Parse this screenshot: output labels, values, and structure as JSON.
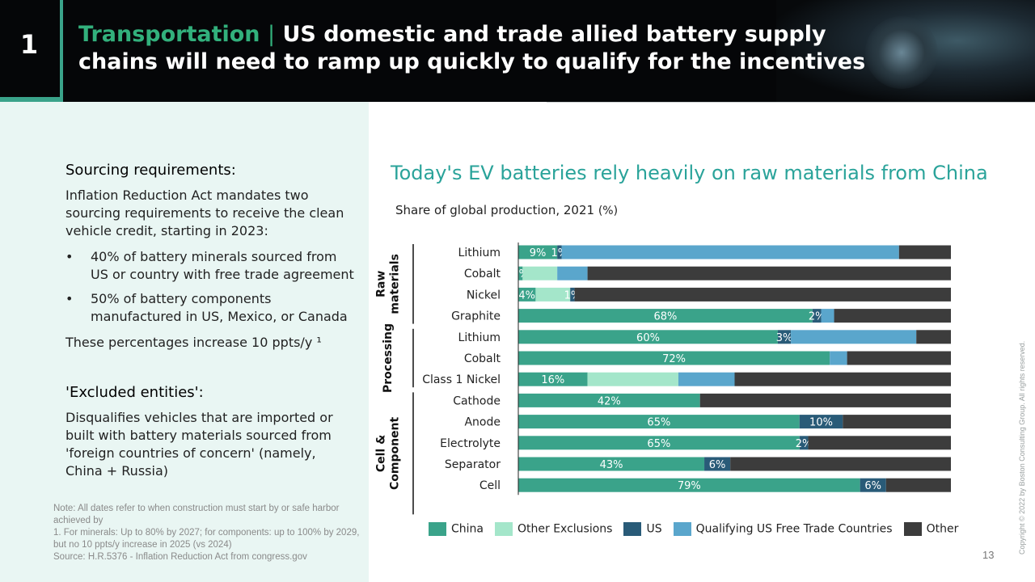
{
  "slide": {
    "number": "1",
    "title_accent": "Transportation",
    "title_sep": "|",
    "title_rest_line1": "US domestic and trade allied battery supply",
    "title_rest_line2": "chains will need to ramp up quickly to qualify for the incentives",
    "page_number": "13",
    "copyright": "Copyright © 2022 by Boston Consulting Group. All rights reserved."
  },
  "left": {
    "sourcing_heading": "Sourcing requirements:",
    "sourcing_intro": "Inflation Reduction Act mandates two sourcing requirements to receive the clean vehicle credit, starting in 2023:",
    "bullets": [
      "40% of battery minerals sourced from US or country with free trade agreement",
      "50% of battery components manufactured in US, Mexico, or Canada"
    ],
    "bullet_glyph": "•",
    "increase_text": "These percentages increase 10 ppts/y ¹",
    "excluded_heading": "'Excluded entities':",
    "excluded_text": "Disqualifies vehicles that are imported or built with battery materials sourced from 'foreign countries of concern' (namely, China + Russia)",
    "notes": [
      "Note: All dates refer to when construction must start by or safe harbor achieved by",
      "1. For minerals: Up to 80% by 2027; for components: up to 100% by 2029, but no 10 ppts/y increase in 2025 (vs 2024)",
      "Source: H.R.5376 - Inflation Reduction Act from congress.gov"
    ]
  },
  "chart_data": {
    "type": "bar",
    "orientation": "horizontal-stacked",
    "title": "Today's EV batteries rely heavily on raw materials from China",
    "subtitle": "Share of global production, 2021",
    "unit": "(%)",
    "groups": [
      {
        "label": "Raw materials",
        "label_lines": [
          "Raw",
          "materials"
        ],
        "rows": [
          0,
          3
        ]
      },
      {
        "label": "Processing",
        "label_lines": [
          "Processing"
        ],
        "rows": [
          4,
          6
        ]
      },
      {
        "label": "Cell & Component",
        "label_lines": [
          "Cell &",
          "Component"
        ],
        "rows": [
          7,
          12
        ]
      }
    ],
    "categories": [
      "Lithium",
      "Cobalt",
      "Nickel",
      "Graphite",
      "Lithium",
      "Cobalt",
      "Class 1 Nickel",
      "Cathode",
      "Anode",
      "Electrolyte",
      "Separator",
      "Cell"
    ],
    "series": [
      {
        "name": "China",
        "color": "#3aa38a",
        "values": [
          9,
          1,
          4,
          68,
          60,
          72,
          16,
          42,
          65,
          65,
          43,
          79
        ],
        "labels": [
          "9%",
          "1%",
          "4%",
          "68%",
          "60%",
          "72%",
          "16%",
          "42%",
          "65%",
          "65%",
          "43%",
          "79%"
        ]
      },
      {
        "name": "Other Exclusions",
        "color": "#a4e6ca",
        "values": [
          0,
          8,
          8,
          0,
          0,
          0,
          21,
          0,
          0,
          0,
          0,
          0
        ],
        "labels": [
          "",
          "",
          "",
          "",
          "",
          "",
          "",
          "",
          "",
          "",
          "",
          ""
        ]
      },
      {
        "name": "US",
        "color": "#295b78",
        "values": [
          1,
          0,
          1,
          2,
          3,
          0,
          0,
          0,
          10,
          2,
          6,
          6
        ],
        "labels": [
          "1%",
          "",
          "1%",
          "2%",
          "3%",
          "",
          "",
          "",
          "10%",
          "2%",
          "6%",
          "6%"
        ]
      },
      {
        "name": "Qualifying US Free Trade Countries",
        "color": "#5aa6cc",
        "values": [
          78,
          7,
          0,
          3,
          29,
          4,
          13,
          0,
          0,
          0,
          0,
          0
        ],
        "labels": [
          "",
          "",
          "",
          "",
          "",
          "",
          "",
          "",
          "",
          "",
          "",
          ""
        ]
      },
      {
        "name": "Other",
        "color": "#3c3c3c",
        "values": [
          12,
          84,
          87,
          27,
          8,
          24,
          50,
          58,
          25,
          33,
          51,
          15
        ],
        "labels": [
          "",
          "",
          "",
          "",
          "",
          "",
          "",
          "",
          "",
          "",
          "",
          ""
        ]
      }
    ],
    "xlim": [
      0,
      100
    ],
    "legend_position": "bottom"
  }
}
